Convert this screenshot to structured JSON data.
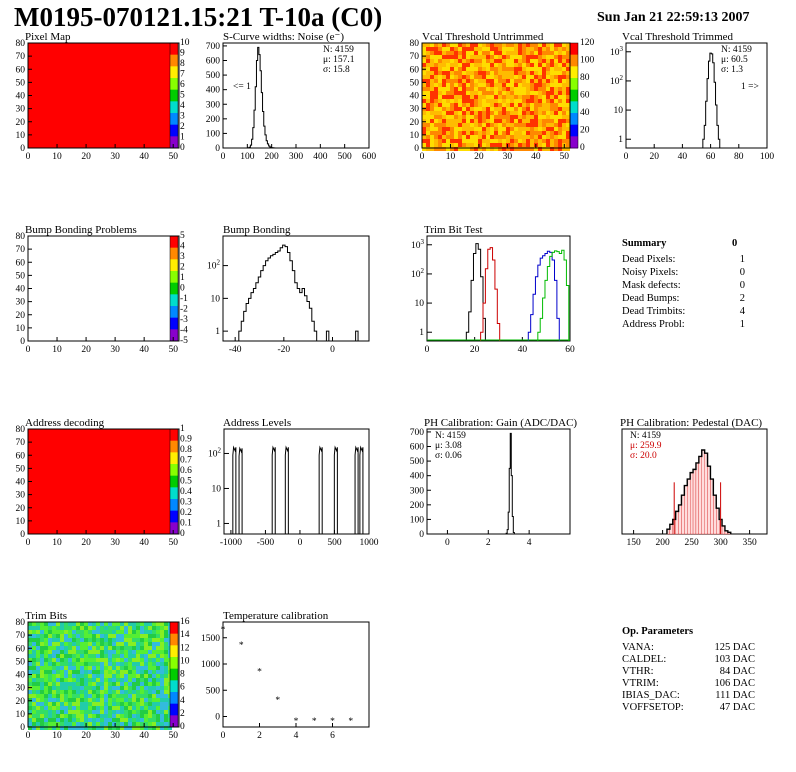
{
  "header": {
    "title": "M0195-070121.15:21 T-10a (C0)",
    "date": "Sun Jan 21 22:59:13 2007"
  },
  "colors": {
    "red_fill": "#ff0000",
    "black": "#000000",
    "red": "#cc0000",
    "blue": "#0000cc",
    "green": "#00bb00"
  },
  "summary": {
    "title": "Summary",
    "total": "0",
    "rows": [
      {
        "label": "Dead Pixels:",
        "value": "1"
      },
      {
        "label": "Noisy Pixels:",
        "value": "0"
      },
      {
        "label": "Mask defects:",
        "value": "0"
      },
      {
        "label": "Dead Bumps:",
        "value": "2"
      },
      {
        "label": "Dead Trimbits:",
        "value": "4"
      },
      {
        "label": "Address Probl:",
        "value": "1"
      }
    ]
  },
  "op_params": {
    "title": "Op. Parameters",
    "rows": [
      {
        "label": "VANA:",
        "value": "125 DAC"
      },
      {
        "label": "CALDEL:",
        "value": "103 DAC"
      },
      {
        "label": "VTHR:",
        "value": "84 DAC"
      },
      {
        "label": "VTRIM:",
        "value": "106 DAC"
      },
      {
        "label": "IBIAS_DAC:",
        "value": "111 DAC"
      },
      {
        "label": "VOFFSETOP:",
        "value": "47 DAC"
      }
    ]
  },
  "chart_data": [
    {
      "id": "pixel_map",
      "type": "heatmap",
      "title": "Pixel Map",
      "xlim": [
        0,
        52
      ],
      "ylim": [
        0,
        80
      ],
      "xticks": [
        0,
        10,
        20,
        30,
        40,
        50
      ],
      "yticks": [
        0,
        10,
        20,
        30,
        40,
        50,
        60,
        70,
        80
      ],
      "fill": "uniform",
      "color": "#ff0000",
      "zticks": [
        "10",
        "9",
        "8",
        "7",
        "6",
        "5",
        "4",
        "3",
        "2",
        "1",
        "0"
      ]
    },
    {
      "id": "scurve",
      "type": "bar",
      "title": "S-Curve widths: Noise (e⁻)",
      "xlim": [
        0,
        600
      ],
      "ylim": [
        0,
        720
      ],
      "xticks": [
        0,
        100,
        200,
        300,
        400,
        500,
        600
      ],
      "yticks": [
        0,
        100,
        200,
        300,
        400,
        500,
        600,
        700
      ],
      "stats": [
        "N: 4159",
        "μ: 157.1",
        "σ: 15.8"
      ],
      "annotation": "<= 1",
      "series": [
        {
          "x": [
            105,
            110,
            115,
            120,
            125,
            130,
            135,
            140,
            145,
            150,
            155,
            160,
            165,
            170,
            175,
            180,
            185,
            190,
            195,
            200,
            205,
            210
          ],
          "values": [
            2,
            5,
            20,
            60,
            140,
            260,
            420,
            600,
            690,
            640,
            530,
            380,
            250,
            150,
            90,
            50,
            28,
            14,
            7,
            3,
            2,
            1
          ]
        }
      ]
    },
    {
      "id": "vcal_untrimmed",
      "type": "heatmap",
      "title": "Vcal Threshold Untrimmed",
      "xlim": [
        0,
        52
      ],
      "ylim": [
        0,
        80
      ],
      "xticks": [
        0,
        10,
        20,
        30,
        40,
        50
      ],
      "yticks": [
        0,
        10,
        20,
        30,
        40,
        50,
        60,
        70,
        80
      ],
      "fill": "noise",
      "palette": [
        "#ff3300",
        "#ff8800",
        "#ffbb00",
        "#ffdd00"
      ],
      "zticks": [
        "120",
        "100",
        "80",
        "60",
        "40",
        "20",
        "0"
      ]
    },
    {
      "id": "vcal_trimmed",
      "type": "line",
      "title": "Vcal Threshold Trimmed",
      "xlim": [
        0,
        100
      ],
      "ylog": true,
      "ylim": [
        0.5,
        2000
      ],
      "xticks": [
        0,
        20,
        40,
        60,
        80,
        100
      ],
      "stats": [
        "N: 4159",
        "μ: 60.5",
        "σ: 1.3"
      ],
      "annotation": "1 =>",
      "series": [
        {
          "x": [
            55,
            56,
            57,
            58,
            59,
            60,
            61,
            62,
            63,
            64,
            65,
            66
          ],
          "values": [
            1,
            3,
            20,
            120,
            480,
            900,
            850,
            420,
            90,
            15,
            3,
            1
          ]
        }
      ]
    },
    {
      "id": "bump_map",
      "type": "heatmap",
      "title": "Bump Bonding Problems",
      "xlim": [
        0,
        52
      ],
      "ylim": [
        0,
        80
      ],
      "xticks": [
        0,
        10,
        20,
        30,
        40,
        50
      ],
      "yticks": [
        0,
        10,
        20,
        30,
        40,
        50,
        60,
        70,
        80
      ],
      "fill": "none",
      "zticks": [
        "5",
        "4",
        "3",
        "2",
        "1",
        "0",
        "-1",
        "-2",
        "-3",
        "-4",
        "-5"
      ]
    },
    {
      "id": "bump_bonding",
      "type": "line",
      "title": "Bump Bonding",
      "xlim": [
        -45,
        15
      ],
      "ylog": true,
      "ylim": [
        0.5,
        800
      ],
      "xticks": [
        -40,
        -20,
        0
      ],
      "series": [
        {
          "x": [
            -38,
            -37,
            -36,
            -35,
            -34,
            -33,
            -32,
            -31,
            -30,
            -29,
            -28,
            -27,
            -26,
            -25,
            -24,
            -23,
            -22,
            -21,
            -20,
            -19,
            -18,
            -17,
            -16,
            -15,
            -14,
            -13,
            -12,
            -11,
            -10,
            -9,
            -8,
            -7,
            -6,
            -5,
            -4,
            -3,
            -2
          ],
          "values": [
            1,
            2,
            4,
            7,
            10,
            15,
            20,
            30,
            45,
            70,
            100,
            140,
            170,
            200,
            220,
            250,
            280,
            350,
            420,
            380,
            250,
            140,
            70,
            30,
            20,
            15,
            20,
            12,
            8,
            5,
            2,
            1,
            0,
            0,
            0,
            0,
            0
          ]
        }
      ]
    },
    {
      "id": "trim_bit_test",
      "type": "line",
      "title": "Trim Bit Test",
      "xlim": [
        0,
        60
      ],
      "ylog": true,
      "ylim": [
        0.5,
        2000
      ],
      "xticks": [
        0,
        20,
        40,
        60
      ],
      "series": [
        {
          "color": "#000000",
          "x": [
            17,
            18,
            19,
            20,
            21,
            22,
            23,
            24
          ],
          "values": [
            1,
            5,
            60,
            500,
            1100,
            700,
            80,
            3
          ]
        },
        {
          "color": "#cc0000",
          "x": [
            23,
            24,
            25,
            26,
            27,
            28,
            29,
            30
          ],
          "values": [
            1,
            10,
            150,
            700,
            800,
            300,
            30,
            2
          ]
        },
        {
          "color": "#0000cc",
          "x": [
            43,
            44,
            45,
            46,
            47,
            48,
            49,
            50,
            51,
            52,
            53,
            54,
            55
          ],
          "values": [
            1,
            4,
            20,
            80,
            200,
            350,
            420,
            500,
            600,
            550,
            300,
            60,
            3
          ]
        },
        {
          "color": "#00bb00",
          "x": [
            47,
            48,
            49,
            50,
            51,
            52,
            53,
            54,
            55,
            56,
            57,
            58,
            59
          ],
          "values": [
            1,
            3,
            15,
            60,
            180,
            400,
            550,
            620,
            580,
            500,
            650,
            300,
            40
          ]
        }
      ]
    },
    {
      "id": "address_decoding",
      "type": "heatmap",
      "title": "Address decoding",
      "xlim": [
        0,
        52
      ],
      "ylim": [
        0,
        80
      ],
      "xticks": [
        0,
        10,
        20,
        30,
        40,
        50
      ],
      "yticks": [
        0,
        10,
        20,
        30,
        40,
        50,
        60,
        70,
        80
      ],
      "fill": "uniform",
      "color": "#ff0000",
      "zticks": [
        "1",
        "0.9",
        "0.8",
        "0.7",
        "0.6",
        "0.5",
        "0.4",
        "0.3",
        "0.2",
        "0.1",
        "0"
      ]
    },
    {
      "id": "address_levels",
      "type": "line",
      "title": "Address Levels",
      "xlim": [
        -1100,
        1000
      ],
      "ylog": true,
      "ylim": [
        0.5,
        500
      ],
      "xticks": [
        -1000,
        -500,
        0,
        500,
        1000
      ],
      "series": [
        {
          "peaks": [
            -950,
            -860,
            -380,
            -190,
            300,
            520,
            820,
            890
          ],
          "heights": [
            150,
            140,
            150,
            150,
            150,
            150,
            150,
            150
          ]
        }
      ]
    },
    {
      "id": "ph_gain",
      "type": "line",
      "title": "PH Calibration: Gain (ADC/DAC)",
      "xlim": [
        -1,
        6
      ],
      "ylim": [
        0,
        720
      ],
      "xticks": [
        0,
        2,
        4
      ],
      "yticks": [
        0,
        100,
        200,
        300,
        400,
        500,
        600,
        700
      ],
      "stats": [
        "N: 4159",
        "μ: 3.08",
        "σ: 0.06"
      ],
      "series": [
        {
          "x": [
            2.9,
            2.95,
            3.0,
            3.05,
            3.1,
            3.15,
            3.2,
            3.25
          ],
          "values": [
            5,
            30,
            150,
            450,
            690,
            400,
            120,
            10
          ]
        }
      ]
    },
    {
      "id": "ph_pedestal",
      "type": "line",
      "title": "PH Calibration: Pedestal (DAC)",
      "xlim": [
        130,
        380
      ],
      "ylim": [
        0,
        65
      ],
      "xticks": [
        150,
        200,
        250,
        300,
        350
      ],
      "stats": [
        "N: 4159",
        "μ: 259.9",
        "σ: 20.0"
      ],
      "series": [
        {
          "x": [
            210,
            215,
            220,
            225,
            230,
            235,
            240,
            245,
            250,
            255,
            260,
            265,
            270,
            275,
            280,
            285,
            290,
            295,
            300,
            305,
            310,
            315
          ],
          "values": [
            3,
            6,
            9,
            14,
            18,
            24,
            30,
            34,
            38,
            40,
            44,
            48,
            52,
            50,
            42,
            34,
            24,
            16,
            9,
            5,
            2,
            1
          ]
        }
      ]
    },
    {
      "id": "trim_bits",
      "type": "heatmap",
      "title": "Trim Bits",
      "xlim": [
        0,
        52
      ],
      "ylim": [
        0,
        80
      ],
      "xticks": [
        0,
        10,
        20,
        30,
        40,
        50
      ],
      "yticks": [
        0,
        10,
        20,
        30,
        40,
        50,
        60,
        70,
        80
      ],
      "fill": "noise",
      "palette": [
        "#22cc44",
        "#33dd66",
        "#55ee33",
        "#22ccaa",
        "#88ee22",
        "#33bbdd"
      ],
      "zticks": [
        "16",
        "14",
        "12",
        "10",
        "8",
        "6",
        "4",
        "2",
        "0"
      ]
    },
    {
      "id": "temperature",
      "type": "scatter",
      "title": "Temperature calibration",
      "xlim": [
        0,
        8
      ],
      "ylim": [
        -200,
        1800
      ],
      "xticks": [
        0,
        2,
        4,
        6
      ],
      "yticks": [
        0,
        500,
        1000,
        1500
      ],
      "points": [
        {
          "x": 0,
          "y": 1700
        },
        {
          "x": 1,
          "y": 1400
        },
        {
          "x": 2,
          "y": 900
        },
        {
          "x": 3,
          "y": 350
        },
        {
          "x": 4,
          "y": -50
        },
        {
          "x": 5,
          "y": -50
        },
        {
          "x": 6,
          "y": -50
        },
        {
          "x": 7,
          "y": -50
        }
      ]
    }
  ]
}
